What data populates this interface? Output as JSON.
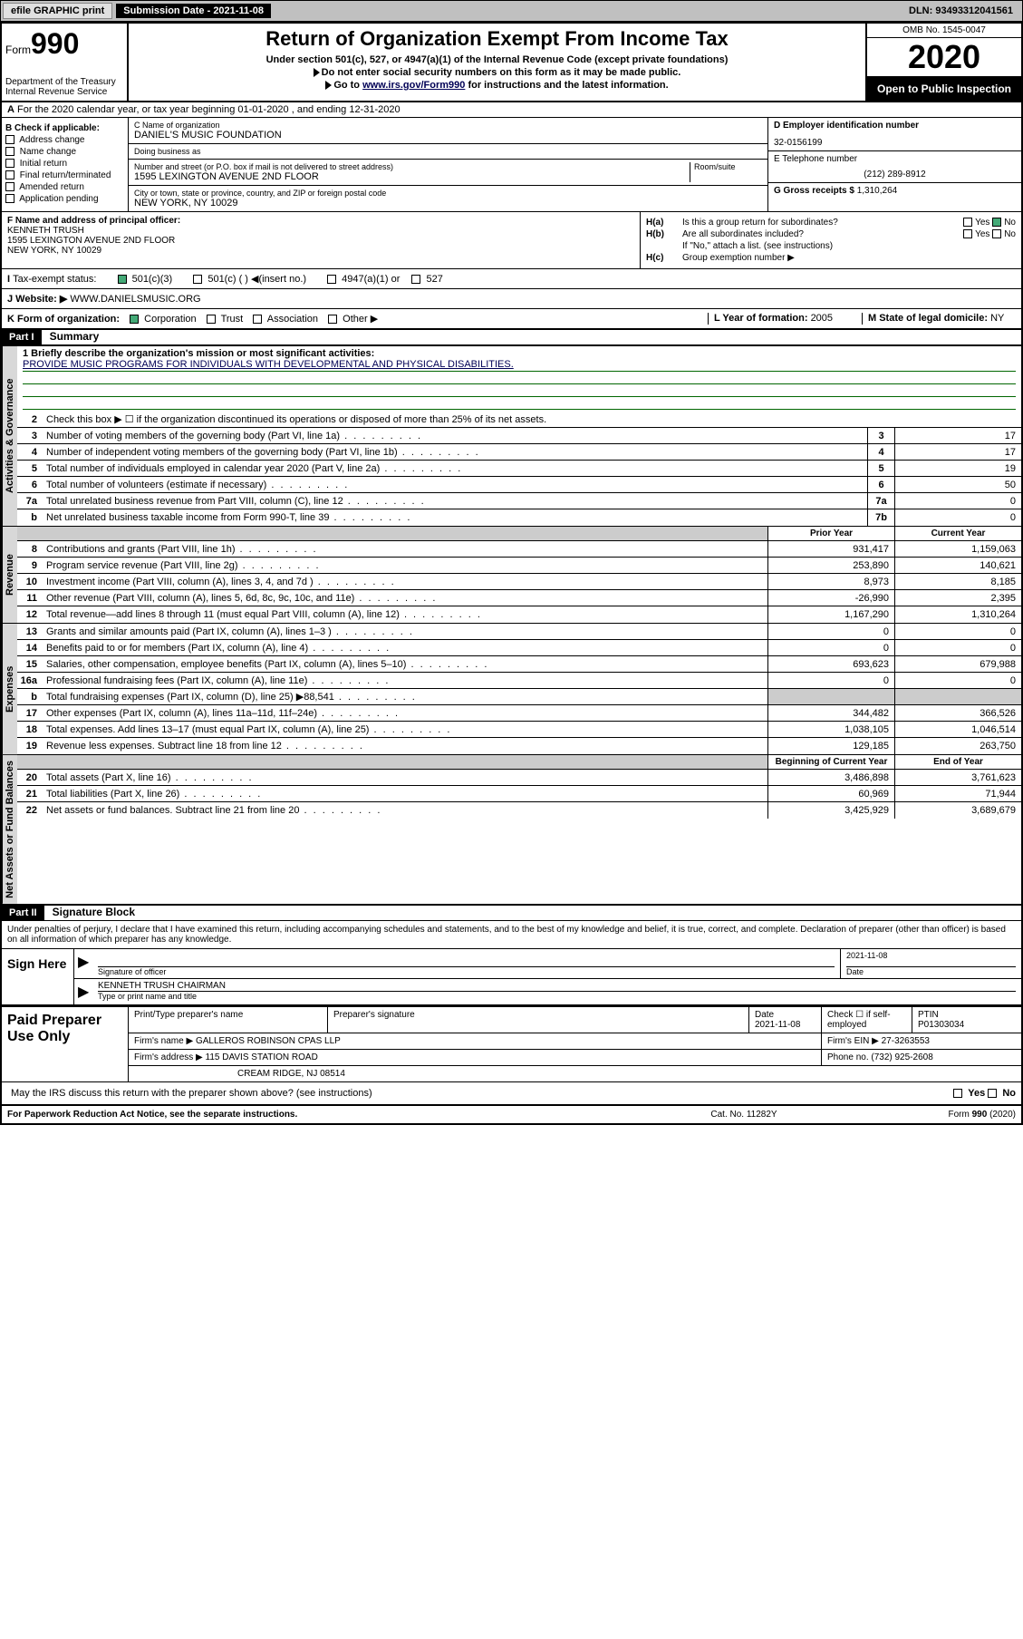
{
  "topbar": {
    "efile": "efile GRAPHIC print",
    "submission_label": "Submission Date - 2021-11-08",
    "dln": "DLN: 93493312041561"
  },
  "header": {
    "form_prefix": "Form",
    "form_num": "990",
    "dept": "Department of the Treasury\nInternal Revenue Service",
    "title": "Return of Organization Exempt From Income Tax",
    "sub1": "Under section 501(c), 527, or 4947(a)(1) of the Internal Revenue Code (except private foundations)",
    "sub2a": "Do not enter social security numbers on this form as it may be made public.",
    "sub2b": "Go to ",
    "sub2link": "www.irs.gov/Form990",
    "sub2c": " for instructions and the latest information.",
    "omb": "OMB No. 1545-0047",
    "year": "2020",
    "public": "Open to Public Inspection"
  },
  "row_a": "For the 2020 calendar year, or tax year beginning 01-01-2020    , and ending 12-31-2020",
  "section_b": {
    "label": "B Check if applicable:",
    "items": [
      "Address change",
      "Name change",
      "Initial return",
      "Final return/terminated",
      "Amended return",
      "Application pending"
    ]
  },
  "section_c": {
    "name_label": "C Name of organization",
    "name": "DANIEL'S MUSIC FOUNDATION",
    "dba_label": "Doing business as",
    "dba": "",
    "addr_label": "Number and street (or P.O. box if mail is not delivered to street address)",
    "room_label": "Room/suite",
    "addr": "1595 LEXINGTON AVENUE 2ND FLOOR",
    "city_label": "City or town, state or province, country, and ZIP or foreign postal code",
    "city": "NEW YORK, NY  10029"
  },
  "section_d": {
    "ein_label": "D Employer identification number",
    "ein": "32-0156199",
    "phone_label": "E Telephone number",
    "phone": "(212) 289-8912",
    "gross_label": "G Gross receipts $ ",
    "gross": "1,310,264"
  },
  "section_f": {
    "label": "F  Name and address of principal officer:",
    "name": "KENNETH TRUSH",
    "addr": "1595 LEXINGTON AVENUE 2ND FLOOR\nNEW YORK, NY  10029"
  },
  "section_h": {
    "ha_label": "H(a)",
    "ha_text": "Is this a group return for subordinates?",
    "hb_label": "H(b)",
    "hb_text": "Are all subordinates included?",
    "hb_note": "If \"No,\" attach a list. (see instructions)",
    "hc_label": "H(c)",
    "hc_text": "Group exemption number ▶",
    "yes": "Yes",
    "no": "No"
  },
  "row_i": {
    "label": "Tax-exempt status:",
    "opts": [
      "501(c)(3)",
      "501(c) (  ) ◀(insert no.)",
      "4947(a)(1) or",
      "527"
    ]
  },
  "row_j": {
    "label": "J   Website: ▶",
    "val": "WWW.DANIELSMUSIC.ORG"
  },
  "row_k": {
    "label": "K Form of organization:",
    "opts": [
      "Corporation",
      "Trust",
      "Association",
      "Other ▶"
    ],
    "l_label": "L Year of formation: ",
    "l_val": "2005",
    "m_label": "M State of legal domicile: ",
    "m_val": "NY"
  },
  "part1": {
    "hdr": "Part I",
    "title": "Summary",
    "q1_label": "1  Briefly describe the organization's mission or most significant activities:",
    "q1_val": "PROVIDE MUSIC PROGRAMS FOR INDIVIDUALS WITH DEVELOPMENTAL AND PHYSICAL DISABILITIES.",
    "q2": "Check this box ▶ ☐  if the organization discontinued its operations or disposed of more than 25% of its net assets.",
    "vert_gov": "Activities & Governance",
    "vert_rev": "Revenue",
    "vert_exp": "Expenses",
    "vert_net": "Net Assets or Fund Balances",
    "prior_hdr": "Prior Year",
    "current_hdr": "Current Year",
    "begin_hdr": "Beginning of Current Year",
    "end_hdr": "End of Year",
    "lines_gov": [
      {
        "n": "3",
        "d": "Number of voting members of the governing body (Part VI, line 1a)",
        "box": "3",
        "v": "17"
      },
      {
        "n": "4",
        "d": "Number of independent voting members of the governing body (Part VI, line 1b)",
        "box": "4",
        "v": "17"
      },
      {
        "n": "5",
        "d": "Total number of individuals employed in calendar year 2020 (Part V, line 2a)",
        "box": "5",
        "v": "19"
      },
      {
        "n": "6",
        "d": "Total number of volunteers (estimate if necessary)",
        "box": "6",
        "v": "50"
      },
      {
        "n": "7a",
        "d": "Total unrelated business revenue from Part VIII, column (C), line 12",
        "box": "7a",
        "v": "0"
      },
      {
        "n": "b",
        "d": "Net unrelated business taxable income from Form 990-T, line 39",
        "box": "7b",
        "v": "0"
      }
    ],
    "lines_rev": [
      {
        "n": "8",
        "d": "Contributions and grants (Part VIII, line 1h)",
        "p": "931,417",
        "c": "1,159,063"
      },
      {
        "n": "9",
        "d": "Program service revenue (Part VIII, line 2g)",
        "p": "253,890",
        "c": "140,621"
      },
      {
        "n": "10",
        "d": "Investment income (Part VIII, column (A), lines 3, 4, and 7d )",
        "p": "8,973",
        "c": "8,185"
      },
      {
        "n": "11",
        "d": "Other revenue (Part VIII, column (A), lines 5, 6d, 8c, 9c, 10c, and 11e)",
        "p": "-26,990",
        "c": "2,395"
      },
      {
        "n": "12",
        "d": "Total revenue—add lines 8 through 11 (must equal Part VIII, column (A), line 12)",
        "p": "1,167,290",
        "c": "1,310,264"
      }
    ],
    "lines_exp": [
      {
        "n": "13",
        "d": "Grants and similar amounts paid (Part IX, column (A), lines 1–3 )",
        "p": "0",
        "c": "0"
      },
      {
        "n": "14",
        "d": "Benefits paid to or for members (Part IX, column (A), line 4)",
        "p": "0",
        "c": "0"
      },
      {
        "n": "15",
        "d": "Salaries, other compensation, employee benefits (Part IX, column (A), lines 5–10)",
        "p": "693,623",
        "c": "679,988"
      },
      {
        "n": "16a",
        "d": "Professional fundraising fees (Part IX, column (A), line 11e)",
        "p": "0",
        "c": "0"
      },
      {
        "n": "b",
        "d": "Total fundraising expenses (Part IX, column (D), line 25) ▶88,541",
        "p": "",
        "c": "",
        "shade": true
      },
      {
        "n": "17",
        "d": "Other expenses (Part IX, column (A), lines 11a–11d, 11f–24e)",
        "p": "344,482",
        "c": "366,526"
      },
      {
        "n": "18",
        "d": "Total expenses. Add lines 13–17 (must equal Part IX, column (A), line 25)",
        "p": "1,038,105",
        "c": "1,046,514"
      },
      {
        "n": "19",
        "d": "Revenue less expenses. Subtract line 18 from line 12",
        "p": "129,185",
        "c": "263,750"
      }
    ],
    "lines_net": [
      {
        "n": "20",
        "d": "Total assets (Part X, line 16)",
        "p": "3,486,898",
        "c": "3,761,623"
      },
      {
        "n": "21",
        "d": "Total liabilities (Part X, line 26)",
        "p": "60,969",
        "c": "71,944"
      },
      {
        "n": "22",
        "d": "Net assets or fund balances. Subtract line 21 from line 20",
        "p": "3,425,929",
        "c": "3,689,679"
      }
    ]
  },
  "part2": {
    "hdr": "Part II",
    "title": "Signature Block",
    "decl": "Under penalties of perjury, I declare that I have examined this return, including accompanying schedules and statements, and to the best of my knowledge and belief, it is true, correct, and complete. Declaration of preparer (other than officer) is based on all information of which preparer has any knowledge."
  },
  "sign": {
    "label": "Sign Here",
    "sig_label": "Signature of officer",
    "date_label": "Date",
    "date": "2021-11-08",
    "name": "KENNETH TRUSH  CHAIRMAN",
    "name_label": "Type or print name and title"
  },
  "prep": {
    "label": "Paid Preparer Use Only",
    "c1": "Print/Type preparer's name",
    "c2": "Preparer's signature",
    "c3": "Date",
    "c3v": "2021-11-08",
    "c4": "Check ☐ if self-employed",
    "c5": "PTIN",
    "c5v": "P01303034",
    "firm_label": "Firm's name    ▶",
    "firm": "GALLEROS ROBINSON CPAS LLP",
    "ein_label": "Firm's EIN ▶",
    "ein": "27-3263553",
    "addr_label": "Firm's address ▶",
    "addr1": "115 DAVIS STATION ROAD",
    "addr2": "CREAM RIDGE, NJ  08514",
    "phone_label": "Phone no. ",
    "phone": "(732) 925-2608"
  },
  "may_irs": "May the IRS discuss this return with the preparer shown above? (see instructions)",
  "footer": {
    "l": "For Paperwork Reduction Act Notice, see the separate instructions.",
    "m": "Cat. No. 11282Y",
    "r": "Form 990 (2020)"
  }
}
